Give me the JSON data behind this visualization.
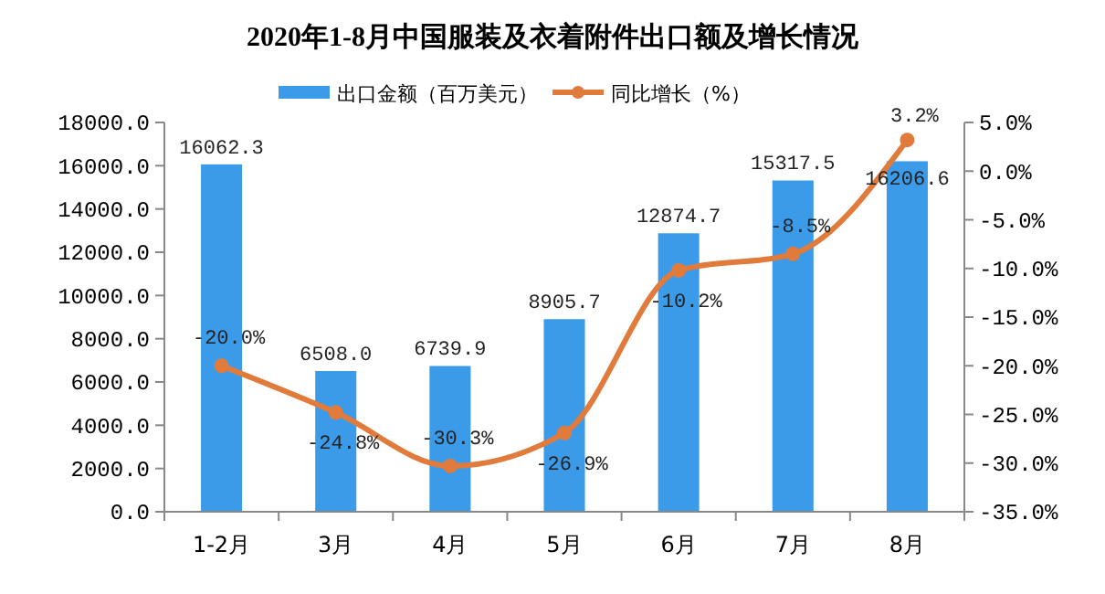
{
  "chart_data": {
    "type": "bar",
    "title": "2020年1-8月中国服装及衣着附件出口额及增长情况",
    "categories": [
      "1-2月",
      "3月",
      "4月",
      "5月",
      "6月",
      "7月",
      "8月"
    ],
    "series": [
      {
        "name": "出口金额（百万美元）",
        "color": "#3c9be8",
        "values": [
          16062.3,
          6508.0,
          6739.9,
          8905.7,
          12874.7,
          15317.5,
          16206.6
        ],
        "value_labels": [
          "16062.3",
          "6508.0",
          "6739.9",
          "8905.7",
          "12874.7",
          "15317.5",
          "16206.6"
        ]
      },
      {
        "name": "同比增长（%）",
        "type": "line",
        "axis": "y2",
        "color": "#e07b3c",
        "marker": "circle",
        "values": [
          -20.0,
          -24.8,
          -30.3,
          -26.9,
          -10.2,
          -8.5,
          3.2
        ],
        "value_labels": [
          "-20.0%",
          "-24.8%",
          "-30.3%",
          "-26.9%",
          "-10.2%",
          "-8.5%",
          "3.2%"
        ]
      }
    ],
    "ylim": [
      0,
      18000
    ],
    "yticks": [
      {
        "value": 0,
        "label": "0.0"
      },
      {
        "value": 2000,
        "label": "2000.0"
      },
      {
        "value": 4000,
        "label": "4000.0"
      },
      {
        "value": 6000,
        "label": "6000.0"
      },
      {
        "value": 8000,
        "label": "8000.0"
      },
      {
        "value": 10000,
        "label": "10000.0"
      },
      {
        "value": 12000,
        "label": "12000.0"
      },
      {
        "value": 14000,
        "label": "14000.0"
      },
      {
        "value": 16000,
        "label": "16000.0"
      },
      {
        "value": 18000,
        "label": "18000.0"
      }
    ],
    "y2lim": [
      -35,
      5
    ],
    "y2ticks": [
      {
        "value": -35,
        "label": "-35.0%"
      },
      {
        "value": -30,
        "label": "-30.0%"
      },
      {
        "value": -25,
        "label": "-25.0%"
      },
      {
        "value": -20,
        "label": "-20.0%"
      },
      {
        "value": -15,
        "label": "-15.0%"
      },
      {
        "value": -10,
        "label": "-10.0%"
      },
      {
        "value": -5,
        "label": "-5.0%"
      },
      {
        "value": 0,
        "label": "0.0%"
      },
      {
        "value": 5,
        "label": "5.0%"
      }
    ],
    "grid": false,
    "legend": "top"
  }
}
